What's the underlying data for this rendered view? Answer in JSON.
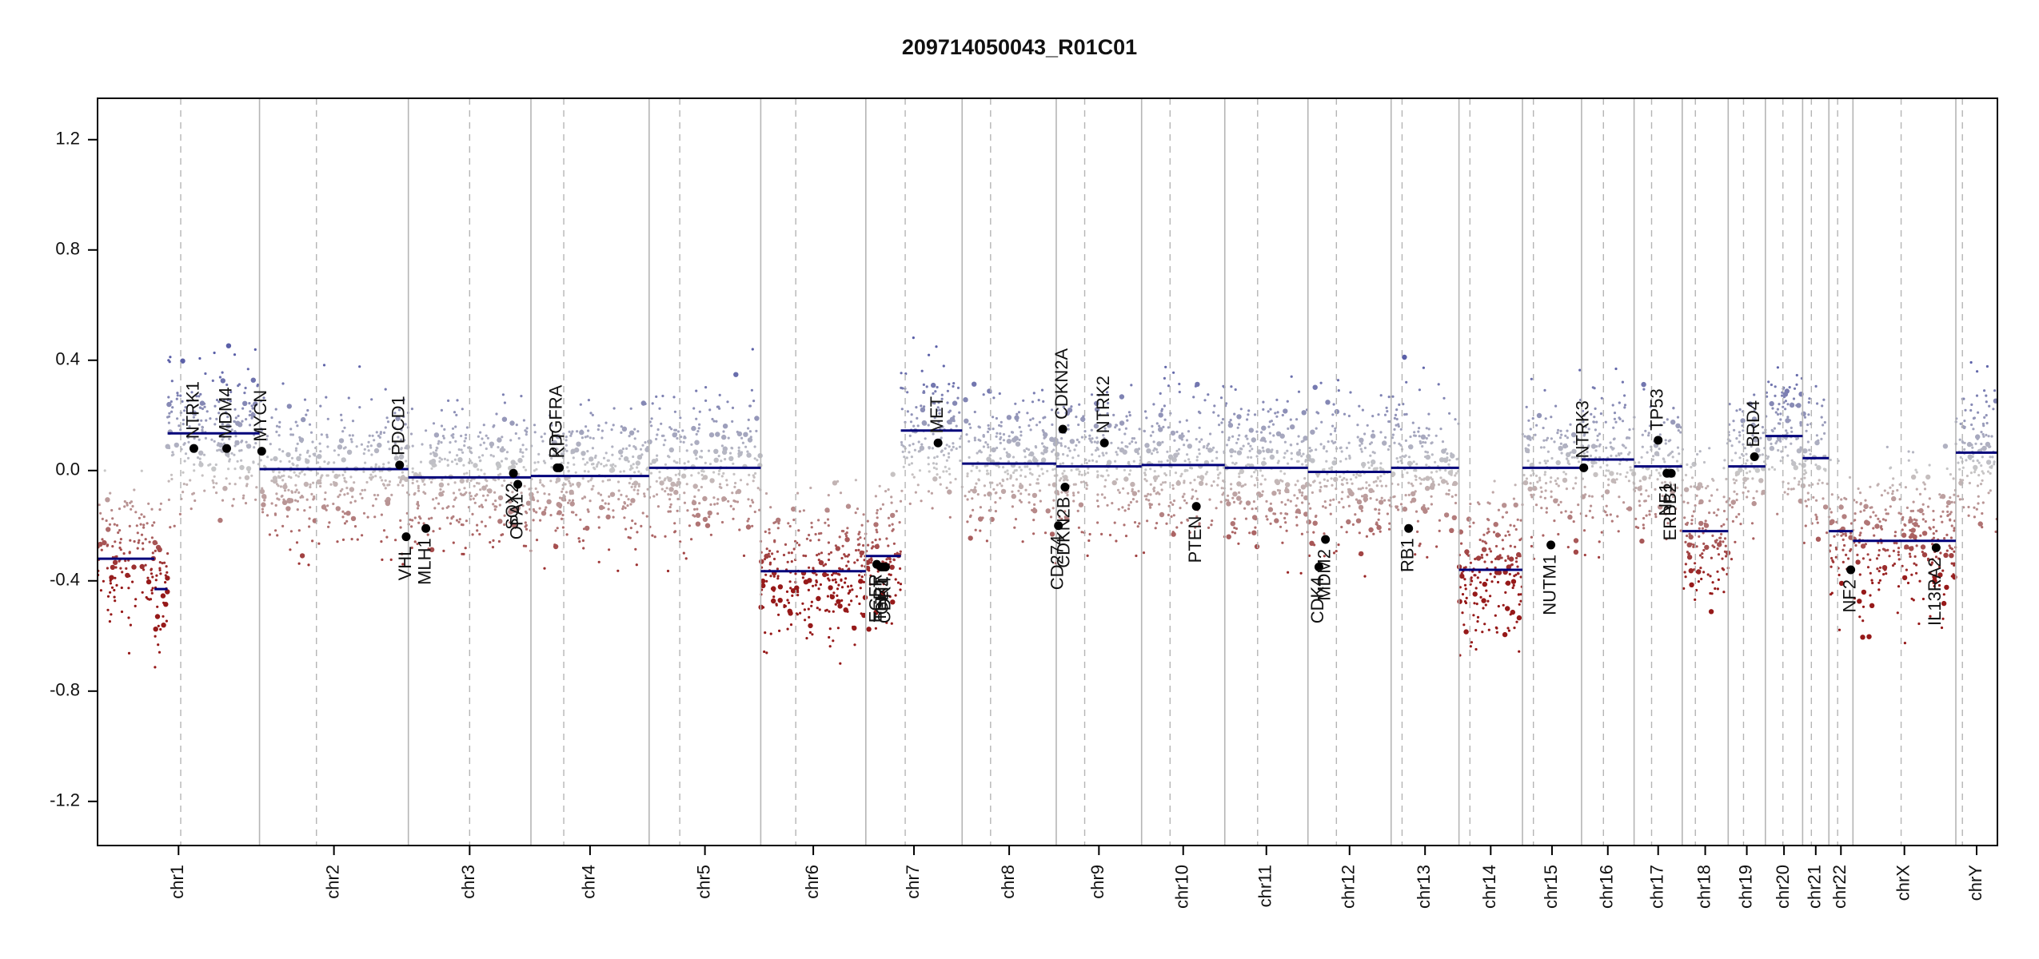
{
  "chart_data": {
    "type": "scatter",
    "title": "209714050043_R01C01",
    "xlabel": "",
    "ylabel": "",
    "ylim": [
      -1.36,
      1.35
    ],
    "y_ticks": [
      -1.2,
      -0.8,
      -0.4,
      0.0,
      0.4,
      0.8,
      1.2
    ],
    "y_tick_labels": [
      "-1.2",
      "-0.8",
      "-0.4",
      "0.0",
      "0.4",
      "0.8",
      "1.2"
    ],
    "colors": {
      "gain": "#5a5fa8",
      "loss": "#9e2020",
      "neutral": "#c8c8c8",
      "segment": "#00007a",
      "axis": "#000000"
    },
    "chromosomes": [
      {
        "name": "chr1",
        "start": 0.0,
        "end": 3.7,
        "centromere": 1.9
      },
      {
        "name": "chr2",
        "start": 3.7,
        "end": 7.1,
        "centromere": 5.0
      },
      {
        "name": "chr3",
        "start": 7.1,
        "end": 9.9,
        "centromere": 8.5
      },
      {
        "name": "chr4",
        "start": 9.9,
        "end": 12.6,
        "centromere": 10.65
      },
      {
        "name": "chr5",
        "start": 12.6,
        "end": 15.15,
        "centromere": 13.3
      },
      {
        "name": "chr6",
        "start": 15.15,
        "end": 17.55,
        "centromere": 15.95
      },
      {
        "name": "chr7",
        "start": 17.55,
        "end": 19.75,
        "centromere": 18.45
      },
      {
        "name": "chr8",
        "start": 19.75,
        "end": 21.9,
        "centromere": 20.4
      },
      {
        "name": "chr9",
        "start": 21.9,
        "end": 23.85,
        "centromere": 22.55
      },
      {
        "name": "chr10",
        "start": 23.85,
        "end": 25.75,
        "centromere": 24.5
      },
      {
        "name": "chr11",
        "start": 25.75,
        "end": 27.65,
        "centromere": 26.5
      },
      {
        "name": "chr12",
        "start": 27.65,
        "end": 29.55,
        "centromere": 28.3
      },
      {
        "name": "chr13",
        "start": 29.55,
        "end": 31.1,
        "centromere": 29.8
      },
      {
        "name": "chr14",
        "start": 31.1,
        "end": 32.55,
        "centromere": 31.35
      },
      {
        "name": "chr15",
        "start": 32.55,
        "end": 33.9,
        "centromere": 32.8
      },
      {
        "name": "chr16",
        "start": 33.9,
        "end": 35.1,
        "centromere": 34.4
      },
      {
        "name": "chr17",
        "start": 35.1,
        "end": 36.2,
        "centromere": 35.5
      },
      {
        "name": "chr18",
        "start": 36.2,
        "end": 37.25,
        "centromere": 36.5
      },
      {
        "name": "chr19",
        "start": 37.25,
        "end": 38.1,
        "centromere": 37.6
      },
      {
        "name": "chr20",
        "start": 38.1,
        "end": 38.95,
        "centromere": 38.5
      },
      {
        "name": "chr21",
        "start": 38.95,
        "end": 39.55,
        "centromere": 39.15
      },
      {
        "name": "chr22",
        "start": 39.55,
        "end": 40.1,
        "centromere": 39.75
      },
      {
        "name": "chrX",
        "start": 40.1,
        "end": 42.45,
        "centromere": 41.2
      },
      {
        "name": "chrY",
        "start": 42.45,
        "end": 43.4,
        "centromere": 42.6
      }
    ],
    "segments": [
      {
        "start": 0.0,
        "end": 1.3,
        "value": -0.32
      },
      {
        "start": 1.3,
        "end": 1.6,
        "value": -0.43
      },
      {
        "start": 1.6,
        "end": 3.7,
        "value": 0.135
      },
      {
        "start": 3.7,
        "end": 7.1,
        "value": 0.005
      },
      {
        "start": 7.1,
        "end": 9.9,
        "value": -0.025
      },
      {
        "start": 9.9,
        "end": 12.6,
        "value": -0.02
      },
      {
        "start": 12.6,
        "end": 15.15,
        "value": 0.01
      },
      {
        "start": 15.15,
        "end": 17.55,
        "value": -0.365
      },
      {
        "start": 17.55,
        "end": 18.35,
        "value": -0.31
      },
      {
        "start": 18.35,
        "end": 19.75,
        "value": 0.145
      },
      {
        "start": 19.75,
        "end": 21.9,
        "value": 0.025
      },
      {
        "start": 21.9,
        "end": 23.85,
        "value": 0.015
      },
      {
        "start": 23.85,
        "end": 25.75,
        "value": 0.02
      },
      {
        "start": 25.75,
        "end": 27.65,
        "value": 0.01
      },
      {
        "start": 27.65,
        "end": 29.55,
        "value": -0.005
      },
      {
        "start": 29.55,
        "end": 31.1,
        "value": 0.01
      },
      {
        "start": 31.1,
        "end": 32.55,
        "value": -0.36
      },
      {
        "start": 32.55,
        "end": 33.9,
        "value": 0.01
      },
      {
        "start": 33.9,
        "end": 35.1,
        "value": 0.04
      },
      {
        "start": 35.1,
        "end": 36.2,
        "value": 0.015
      },
      {
        "start": 36.2,
        "end": 37.25,
        "value": -0.22
      },
      {
        "start": 37.25,
        "end": 38.1,
        "value": 0.015
      },
      {
        "start": 38.1,
        "end": 38.95,
        "value": 0.125
      },
      {
        "start": 38.95,
        "end": 39.55,
        "value": 0.045
      },
      {
        "start": 39.55,
        "end": 40.1,
        "value": -0.22
      },
      {
        "start": 40.1,
        "end": 42.45,
        "value": -0.255
      },
      {
        "start": 42.45,
        "end": 43.4,
        "value": 0.065
      }
    ],
    "genes": [
      {
        "name": "NTRK1",
        "x": 2.2,
        "y": 0.08,
        "label_side": "up"
      },
      {
        "name": "MDM4",
        "x": 2.95,
        "y": 0.08,
        "label_side": "up"
      },
      {
        "name": "MYCN",
        "x": 3.75,
        "y": 0.07,
        "label_side": "up"
      },
      {
        "name": "PDCD1",
        "x": 6.9,
        "y": 0.02,
        "label_side": "up"
      },
      {
        "name": "VHL",
        "x": 7.05,
        "y": -0.24,
        "label_side": "down"
      },
      {
        "name": "MLH1",
        "x": 7.5,
        "y": -0.21,
        "label_side": "down"
      },
      {
        "name": "SOX2",
        "x": 9.5,
        "y": -0.01,
        "label_side": "down"
      },
      {
        "name": "OPA1",
        "x": 9.6,
        "y": -0.05,
        "label_side": "down"
      },
      {
        "name": "PDGFRA",
        "x": 10.5,
        "y": 0.01,
        "label_side": "up"
      },
      {
        "name": "KIT",
        "x": 10.55,
        "y": 0.01,
        "label_side": "up"
      },
      {
        "name": "EGFR",
        "x": 17.8,
        "y": -0.34,
        "label_side": "down"
      },
      {
        "name": "TERT",
        "x": 17.9,
        "y": -0.35,
        "label_side": "down"
      },
      {
        "name": "GLI1",
        "x": 17.95,
        "y": -0.35,
        "label_side": "down"
      },
      {
        "name": "CDK4",
        "x": 18.0,
        "y": -0.35,
        "label_side": "down"
      },
      {
        "name": "MET",
        "x": 19.2,
        "y": 0.1,
        "label_side": "up"
      },
      {
        "name": "CDKN2A",
        "x": 22.05,
        "y": 0.15,
        "label_side": "up"
      },
      {
        "name": "CDKN2B",
        "x": 22.1,
        "y": -0.06,
        "label_side": "down"
      },
      {
        "name": "CD274",
        "x": 21.95,
        "y": -0.2,
        "label_side": "down"
      },
      {
        "name": "NTRK2",
        "x": 23.0,
        "y": 0.1,
        "label_side": "up"
      },
      {
        "name": "PTEN",
        "x": 25.1,
        "y": -0.13,
        "label_side": "down"
      },
      {
        "name": "CDK4",
        "x": 27.9,
        "y": -0.35,
        "label_side": "down"
      },
      {
        "name": "MDM2",
        "x": 28.05,
        "y": -0.25,
        "label_side": "down"
      },
      {
        "name": "RB1",
        "x": 29.95,
        "y": -0.21,
        "label_side": "down"
      },
      {
        "name": "NUTM1",
        "x": 33.2,
        "y": -0.27,
        "label_side": "down"
      },
      {
        "name": "NTRK3",
        "x": 33.95,
        "y": 0.01,
        "label_side": "up"
      },
      {
        "name": "TP53",
        "x": 35.65,
        "y": 0.11,
        "label_side": "up"
      },
      {
        "name": "ERBB2",
        "x": 35.95,
        "y": -0.01,
        "label_side": "down"
      },
      {
        "name": "NF1",
        "x": 35.85,
        "y": -0.01,
        "label_side": "down"
      },
      {
        "name": "BRD4",
        "x": 37.85,
        "y": 0.05,
        "label_side": "up"
      },
      {
        "name": "NF2",
        "x": 40.05,
        "y": -0.36,
        "label_side": "down"
      },
      {
        "name": "IL13RA2",
        "x": 42.0,
        "y": -0.28,
        "label_side": "down"
      }
    ]
  }
}
